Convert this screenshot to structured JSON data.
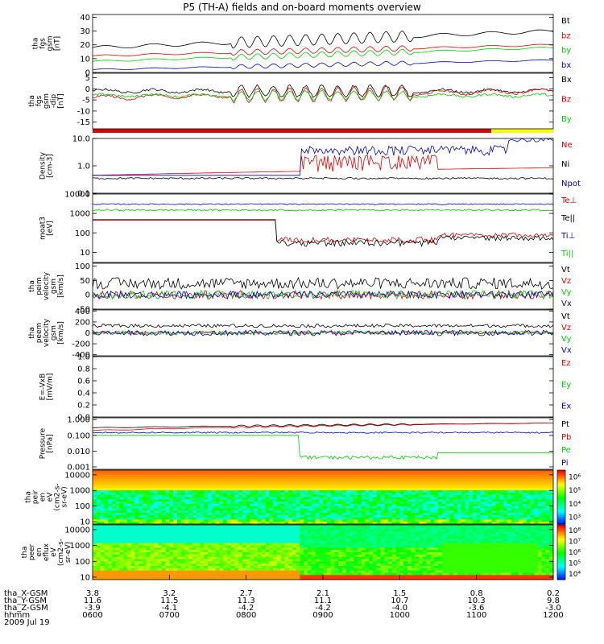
{
  "title": "P5 (TH-A) fields and on-board moments overview",
  "date_label": "2009 Jul 19",
  "colors": {
    "black": "#000000",
    "red": "#dd0000",
    "green": "#00cc00",
    "blue": "#0000cc",
    "yellow": "#ffff00"
  },
  "chart_data": {
    "type": "line",
    "x_axis": {
      "rows": [
        {
          "label": "tha_X-GSM",
          "values": [
            "3.8",
            "3.2",
            "2.7",
            "2.1",
            "1.5",
            "0.8",
            "0.2"
          ]
        },
        {
          "label": "tha_Y-GSM",
          "values": [
            "11.6",
            "11.5",
            "11.3",
            "11.1",
            "10.7",
            "10.3",
            "9.8"
          ]
        },
        {
          "label": "tha_Z-GSM",
          "values": [
            "-3.9",
            "-4.1",
            "-4.2",
            "-4.2",
            "-4.0",
            "-3.6",
            "-3.0"
          ]
        },
        {
          "label": "hhmm",
          "values": [
            "0600",
            "0700",
            "0800",
            "0900",
            "1000",
            "1100",
            "1200"
          ]
        }
      ]
    },
    "panels": [
      {
        "id": "fgs-gsm",
        "ylabel": [
          "tha",
          "fgs",
          "gsm",
          "[nT]"
        ],
        "scale": "linear",
        "ylim": [
          0,
          42
        ],
        "ticks": [
          "0",
          "10",
          "20",
          "30",
          "40"
        ],
        "legend": [
          {
            "name": "Bt",
            "color": "black"
          },
          {
            "name": "bz",
            "color": "red"
          },
          {
            "name": "by",
            "color": "green"
          },
          {
            "name": "bx",
            "color": "blue"
          }
        ]
      },
      {
        "id": "fgs-gsm-dipole",
        "ylabel": [
          "tha",
          "fgs",
          "gsm",
          "-dip",
          "[nT]"
        ],
        "scale": "linear",
        "ylim": [
          -18,
          7
        ],
        "ticks": [
          "-15",
          "-10",
          "-5",
          "0",
          "5"
        ],
        "legend": [
          {
            "name": "Bx",
            "color": "black"
          },
          {
            "name": "Bz",
            "color": "red"
          },
          {
            "name": "By",
            "color": "green"
          }
        ]
      },
      {
        "id": "density",
        "ylabel": [
          "Density",
          "[cm-3]"
        ],
        "scale": "log",
        "ylim": [
          0.1,
          10
        ],
        "ticks": [
          "0.1",
          "1.0",
          "10.0"
        ],
        "legend": [
          {
            "name": "Ne",
            "color": "red"
          },
          {
            "name": "Ni",
            "color": "black"
          },
          {
            "name": "Npot",
            "color": "blue"
          }
        ]
      },
      {
        "id": "temperature",
        "ylabel": [
          "moat3",
          "[eV]"
        ],
        "scale": "log",
        "ylim": [
          3,
          10000
        ],
        "ticks": [
          "10",
          "100",
          "1000",
          "10000"
        ],
        "legend": [
          {
            "name": "Te⊥",
            "color": "red"
          },
          {
            "name": "Te||",
            "color": "black"
          },
          {
            "name": "Ti⊥",
            "color": "blue"
          },
          {
            "name": "Ti||",
            "color": "green"
          }
        ]
      },
      {
        "id": "peim-velocity",
        "ylabel": [
          "tha",
          "peim",
          "velocity",
          "gsm",
          "[km/s]"
        ],
        "scale": "linear",
        "ylim": [
          -50,
          110
        ],
        "ticks": [
          "-50",
          "0",
          "50",
          "100"
        ],
        "legend": [
          {
            "name": "Vt",
            "color": "black"
          },
          {
            "name": "Vz",
            "color": "red"
          },
          {
            "name": "Vy",
            "color": "green"
          },
          {
            "name": "Vx",
            "color": "blue"
          }
        ]
      },
      {
        "id": "peem-velocity",
        "ylabel": [
          "tha",
          "peem",
          "velocity",
          "gsm",
          "[km/s]"
        ],
        "scale": "linear",
        "ylim": [
          -420,
          420
        ],
        "ticks": [
          "-400",
          "-200",
          "0",
          "200",
          "400"
        ],
        "legend": [
          {
            "name": "Vt",
            "color": "black"
          },
          {
            "name": "Vz",
            "color": "red"
          },
          {
            "name": "Vy",
            "color": "green"
          },
          {
            "name": "Vx",
            "color": "blue"
          }
        ]
      },
      {
        "id": "efield",
        "ylabel": [
          "E=-VxB",
          "[mV/m]"
        ],
        "scale": "linear",
        "ylim": [
          0,
          1
        ],
        "ticks": [
          "0.0",
          "0.2",
          "0.4",
          "0.6",
          "0.8",
          "1.0"
        ],
        "legend": [
          {
            "name": "Ez",
            "color": "red"
          },
          {
            "name": "Ey",
            "color": "green"
          },
          {
            "name": "Ex",
            "color": "blue"
          }
        ]
      },
      {
        "id": "pressure",
        "ylabel": [
          "Pressure",
          "[nPa]"
        ],
        "scale": "log",
        "ylim": [
          0.0007,
          1.3
        ],
        "ticks": [
          "0.001",
          "0.010",
          "0.100",
          "1.000"
        ],
        "legend": [
          {
            "name": "Pt",
            "color": "black"
          },
          {
            "name": "Pb",
            "color": "red"
          },
          {
            "name": "Pe",
            "color": "green"
          },
          {
            "name": "Pi",
            "color": "blue"
          }
        ]
      },
      {
        "id": "peir-spectrogram",
        "type": "heatmap",
        "ylabel": [
          "tha",
          "peir",
          "en",
          "eV",
          "(cm2-s-",
          "sr-eV)"
        ],
        "scale": "log",
        "ylim": [
          7,
          20000
        ],
        "ticks": [
          "10",
          "100",
          "1000",
          "10000"
        ],
        "colorbar": {
          "ticks": [
            "10³",
            "10⁴",
            "10⁵",
            "10⁶"
          ]
        }
      },
      {
        "id": "peer-spectrogram",
        "type": "heatmap",
        "ylabel": [
          "tha",
          "peer",
          "en",
          "eflux",
          "eV",
          "(cm2-s-",
          "sr-eV)"
        ],
        "scale": "log",
        "ylim": [
          7,
          20000
        ],
        "ticks": [
          "10",
          "100",
          "1000",
          "10000"
        ],
        "colorbar": {
          "ticks": [
            "10⁴",
            "10⁵",
            "10⁶",
            "10⁷",
            "10⁸"
          ]
        }
      }
    ]
  }
}
